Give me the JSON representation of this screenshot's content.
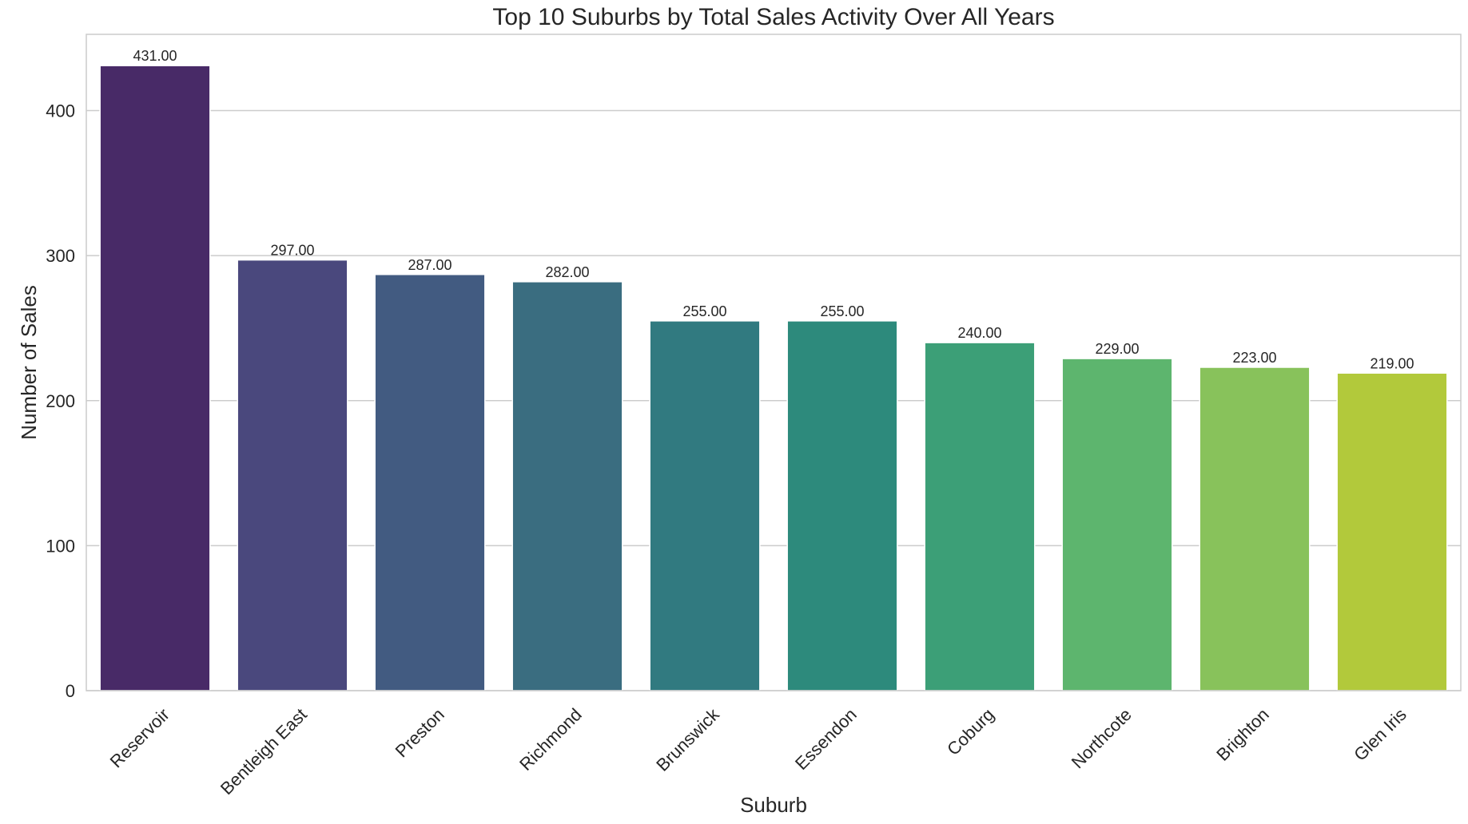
{
  "chart_data": {
    "type": "bar",
    "title": "Top 10 Suburbs by Total Sales Activity Over All Years",
    "xlabel": "Suburb",
    "ylabel": "Number of Sales",
    "categories": [
      "Reservoir",
      "Bentleigh East",
      "Preston",
      "Richmond",
      "Brunswick",
      "Essendon",
      "Coburg",
      "Northcote",
      "Brighton",
      "Glen Iris"
    ],
    "values": [
      431,
      297,
      287,
      282,
      255,
      255,
      240,
      229,
      223,
      219
    ],
    "data_labels": [
      "431.00",
      "297.00",
      "287.00",
      "282.00",
      "255.00",
      "255.00",
      "240.00",
      "229.00",
      "223.00",
      "219.00"
    ],
    "colors": [
      "#482A67",
      "#4A487D",
      "#425B81",
      "#3A6D80",
      "#317A80",
      "#2D8A7C",
      "#3C9F77",
      "#5DB56E",
      "#88C25B",
      "#B2C93B"
    ],
    "yticks": [
      0,
      100,
      200,
      300,
      400
    ],
    "ytick_labels": [
      "0",
      "100",
      "200",
      "300",
      "400"
    ],
    "ylim": [
      0,
      452.6
    ],
    "grid": true,
    "grid_axis": "y",
    "legend": "none"
  }
}
